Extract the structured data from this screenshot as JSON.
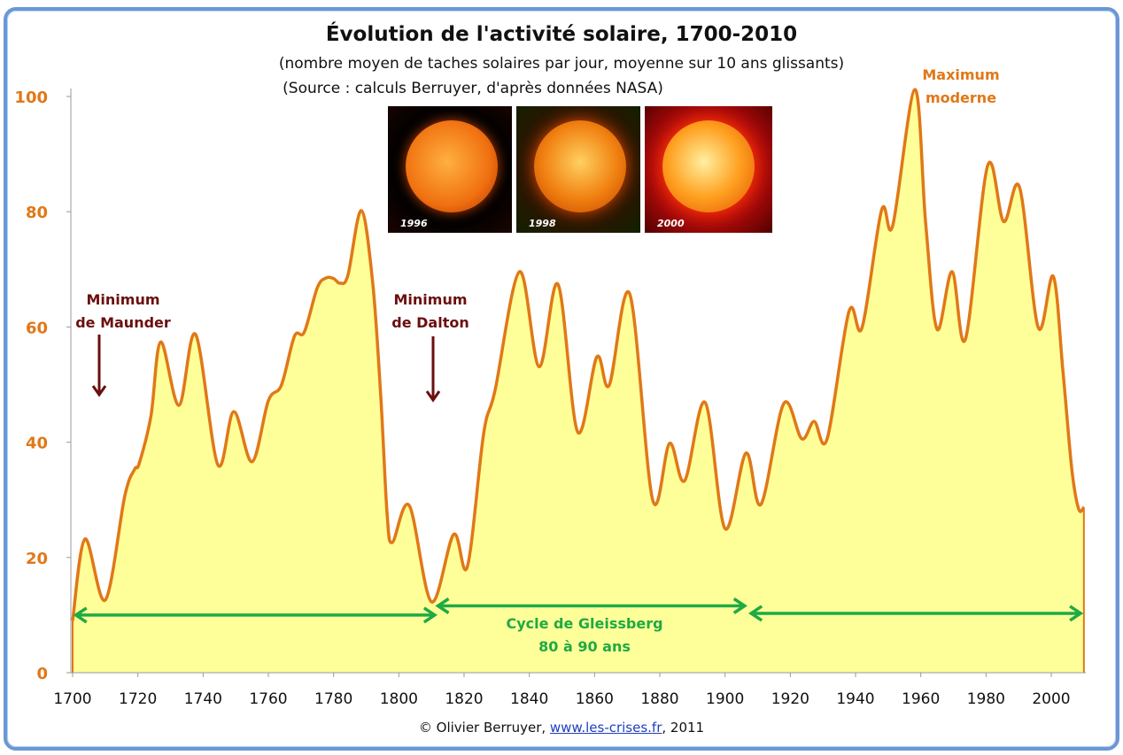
{
  "title": "Évolution de l'activité solaire, 1700-2010",
  "subtitle_line1": "(nombre moyen de taches solaires par jour, moyenne sur 10 ans glissants)",
  "subtitle_line2": "(Source : calculs Berruyer, d'après données NASA)",
  "images": [
    {
      "label": "1996"
    },
    {
      "label": "1998"
    },
    {
      "label": "2000"
    }
  ],
  "annotations": {
    "maunder": [
      "Minimum",
      "de Maunder"
    ],
    "dalton": [
      "Minimum",
      "de Dalton"
    ],
    "maximum": [
      "Maximum",
      "moderne"
    ],
    "gleissberg": [
      "Cycle de Gleissberg",
      "80 à 90 ans"
    ]
  },
  "credit": {
    "prefix": "© Olivier Berruyer, ",
    "link": "www.les-crises.fr",
    "suffix": ",  2011"
  },
  "colors": {
    "line": "#e07818",
    "fill": "#ffff99",
    "arrow": "#1faa44",
    "annotation": "#6b0f0f",
    "frame": "#6a98d4"
  },
  "chart_data": {
    "type": "area",
    "title": "Évolution de l'activité solaire, 1700-2010",
    "xlabel": "",
    "ylabel": "",
    "xlim": [
      1700,
      2010
    ],
    "ylim": [
      0,
      100
    ],
    "x_ticks": [
      1700,
      1720,
      1740,
      1760,
      1780,
      1800,
      1820,
      1840,
      1860,
      1880,
      1900,
      1920,
      1940,
      1960,
      1980,
      2000
    ],
    "y_ticks": [
      0,
      20,
      40,
      60,
      80,
      100
    ],
    "grid": false,
    "x": [
      1700,
      1703.8,
      1710,
      1716,
      1719,
      1720.4,
      1724,
      1727,
      1732.6,
      1737.7,
      1744.5,
      1749.4,
      1755,
      1760,
      1764,
      1768,
      1771,
      1775,
      1777.7,
      1780,
      1782,
      1784.4,
      1788.5,
      1792,
      1794.5,
      1796.4,
      1798,
      1803.2,
      1810,
      1816.8,
      1821,
      1826,
      1829.5,
      1837,
      1843,
      1848.8,
      1854.8,
      1860.7,
      1864.5,
      1870.8,
      1877.8,
      1883,
      1887.6,
      1893.9,
      1900,
      1906.4,
      1911,
      1918,
      1923.5,
      1927.3,
      1931.3,
      1938,
      1942,
      1948,
      1951.4,
      1958.2,
      1961.5,
      1965,
      1969.6,
      1973.7,
      1980.5,
      1985.4,
      1990.3,
      1996,
      2000.6,
      2003.6,
      2006.3,
      2008.4,
      2010
    ],
    "y": [
      9,
      23.2,
      12.6,
      30.7,
      35.3,
      36.3,
      44.5,
      57.4,
      46.4,
      58.7,
      36.1,
      45.3,
      36.6,
      47.2,
      49.9,
      58.4,
      59.1,
      66.8,
      68.5,
      68.4,
      67.6,
      69,
      80.2,
      67.6,
      47.6,
      27.6,
      22.6,
      29,
      12.3,
      24,
      18.4,
      41.5,
      49,
      69.6,
      53.1,
      67.4,
      41.8,
      54.8,
      49.9,
      65.7,
      30,
      39.8,
      33.3,
      46.9,
      25,
      38.1,
      29.2,
      46.7,
      40.6,
      43.6,
      40.6,
      62.7,
      59.9,
      80.3,
      77.6,
      101.2,
      78,
      59.6,
      69.6,
      57.9,
      88,
      78.3,
      84.2,
      59.9,
      68.8,
      52.2,
      35.3,
      28.4,
      28.7
    ],
    "arrows": [
      {
        "from": 1701,
        "to": 1811,
        "level": 10
      },
      {
        "from": 1812,
        "to": 1906,
        "level": 11.6
      },
      {
        "from": 1908,
        "to": 2009,
        "level": 10.3
      }
    ]
  }
}
